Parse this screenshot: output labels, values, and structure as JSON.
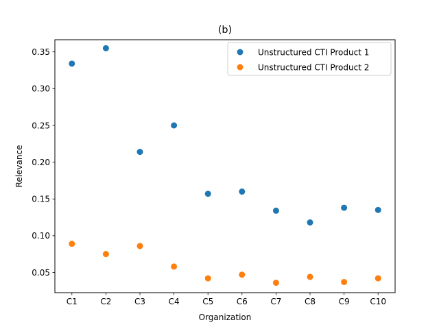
{
  "chart_data": {
    "type": "scatter",
    "title": "(b)",
    "xlabel": "Organization",
    "ylabel": "Relevance",
    "categories": [
      "C1",
      "C2",
      "C3",
      "C4",
      "C5",
      "C6",
      "C7",
      "C8",
      "C9",
      "C10"
    ],
    "ylim": [
      0.0225,
      0.3665
    ],
    "yticks": [
      0.05,
      0.1,
      0.15,
      0.2,
      0.25,
      0.3,
      0.35
    ],
    "ytick_labels": [
      "0.05",
      "0.10",
      "0.15",
      "0.20",
      "0.25",
      "0.30",
      "0.35"
    ],
    "grid": false,
    "legend_position": "top-right",
    "series": [
      {
        "name": "Unstructured CTI Product 1",
        "color": "#1f77b4",
        "values": [
          0.334,
          0.355,
          0.214,
          0.25,
          0.157,
          0.16,
          0.134,
          0.118,
          0.138,
          0.135
        ]
      },
      {
        "name": "Unstructured CTI Product 2",
        "color": "#ff7f0e",
        "values": [
          0.089,
          0.075,
          0.086,
          0.058,
          0.042,
          0.047,
          0.036,
          0.044,
          0.037,
          0.042
        ]
      }
    ]
  }
}
